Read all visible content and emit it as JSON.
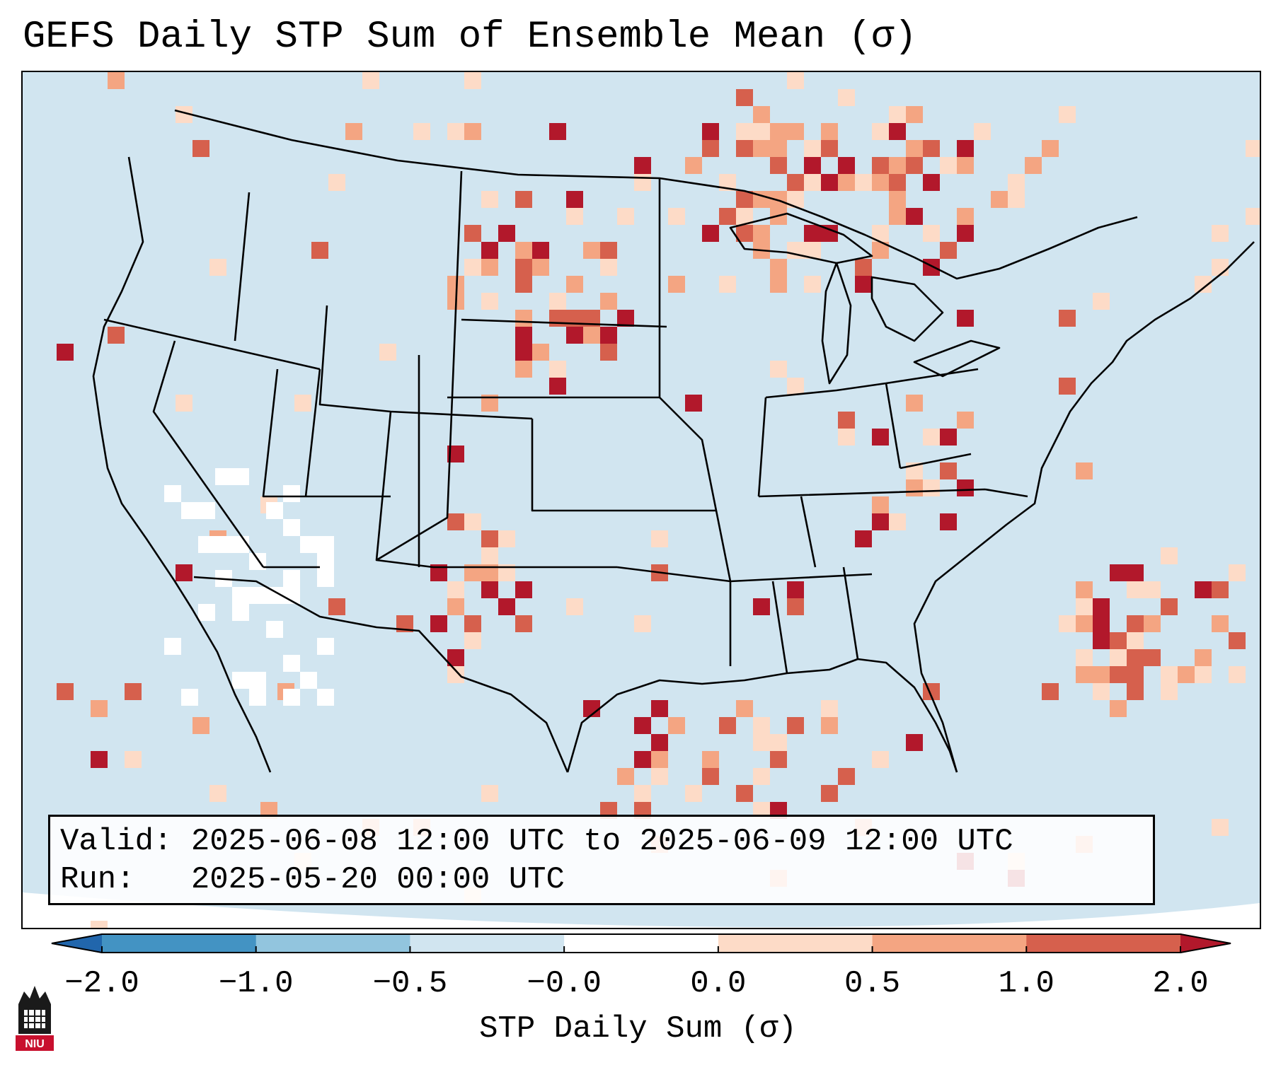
{
  "title": "GEFS Daily STP Sum of Ensemble Mean (σ)",
  "info": {
    "valid_label": "Valid:",
    "valid_value": "2025-06-08 12:00 UTC to 2025-06-09 12:00 UTC",
    "run_label": "Run:",
    "run_value": "2025-05-20 00:00 UTC"
  },
  "colorbar": {
    "label": "STP Daily Sum (σ)",
    "ticks": [
      "−2.0",
      "−1.0",
      "−0.5",
      "−0.0",
      "0.0",
      "0.5",
      "1.0",
      "2.0"
    ],
    "segment_colors": [
      "#2166ac",
      "#4393c3",
      "#92c5de",
      "#d1e5f0",
      "#ffffff",
      "#fddbc7",
      "#f4a582",
      "#d6604d",
      "#b2182b"
    ]
  },
  "logo": {
    "text": "NIU"
  },
  "map": {
    "background_color": "#d1e5f0",
    "region": "Continental United States",
    "high_anomaly_areas": [
      "Northern Plains",
      "Upper Midwest",
      "Great Lakes",
      "Southern Ontario",
      "Western Atlantic",
      "Gulf of Mexico"
    ]
  }
}
